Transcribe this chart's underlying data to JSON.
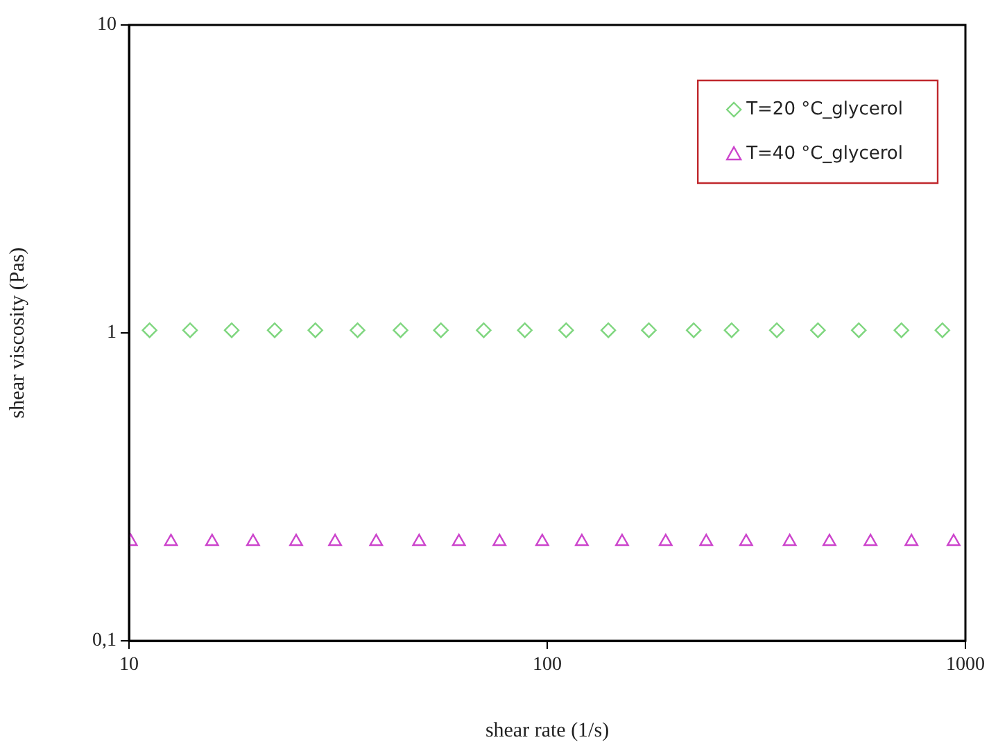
{
  "chart_data": {
    "type": "scatter",
    "xlabel": "shear rate (1/s)",
    "ylabel": "shear viscosity (Pas)",
    "log": "xy",
    "xlim": [
      10,
      1000
    ],
    "xticks": [
      10,
      100,
      1000
    ],
    "ylim": [
      0.1,
      10
    ],
    "yticks": [
      {
        "value": 0.1,
        "label": "0,1"
      },
      1,
      10
    ],
    "grid": false,
    "legend": "top right",
    "series": [
      {
        "name": "T=20 °C_glycerol",
        "color": "#7fd67f",
        "marker": "diamond",
        "x": [
          11.2,
          14.0,
          17.6,
          22.3,
          27.9,
          35.2,
          44.6,
          55.7,
          70.5,
          88.4,
          111,
          140,
          175,
          224,
          276,
          354,
          444,
          556,
          703,
          881
        ],
        "values": [
          1.02,
          1.02,
          1.02,
          1.02,
          1.02,
          1.02,
          1.02,
          1.02,
          1.02,
          1.02,
          1.02,
          1.02,
          1.02,
          1.02,
          1.02,
          1.02,
          1.02,
          1.02,
          1.02,
          1.02
        ]
      },
      {
        "name": "T=40 °C_glycerol",
        "color": "#cc44cc",
        "marker": "triangle",
        "x": [
          10.1,
          12.6,
          15.8,
          19.8,
          25.1,
          31.1,
          39.0,
          49.4,
          61.5,
          76.9,
          97.3,
          121,
          151,
          192,
          240,
          299,
          380,
          473,
          593,
          743,
          937
        ],
        "values": [
          0.21,
          0.21,
          0.21,
          0.21,
          0.21,
          0.21,
          0.21,
          0.21,
          0.21,
          0.21,
          0.21,
          0.21,
          0.21,
          0.21,
          0.21,
          0.21,
          0.21,
          0.21,
          0.21,
          0.21,
          0.21
        ]
      }
    ]
  }
}
